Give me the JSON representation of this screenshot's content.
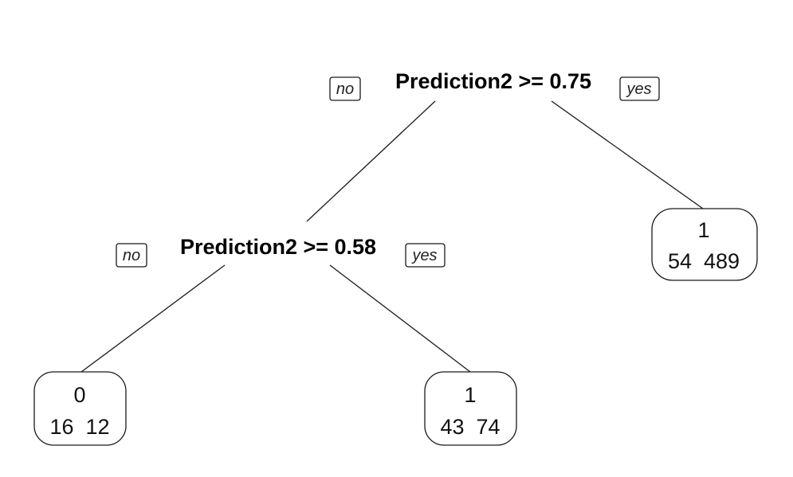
{
  "tree": {
    "root": {
      "label": "Prediction2 >= 0.75",
      "no_label": "no",
      "yes_label": "yes"
    },
    "left_split": {
      "label": "Prediction2 >= 0.58",
      "no_label": "no",
      "yes_label": "yes"
    },
    "leaves": [
      {
        "class": "0",
        "counts": "16  12"
      },
      {
        "class": "1",
        "counts": "43  74"
      },
      {
        "class": "1",
        "counts": "54  489"
      }
    ]
  }
}
